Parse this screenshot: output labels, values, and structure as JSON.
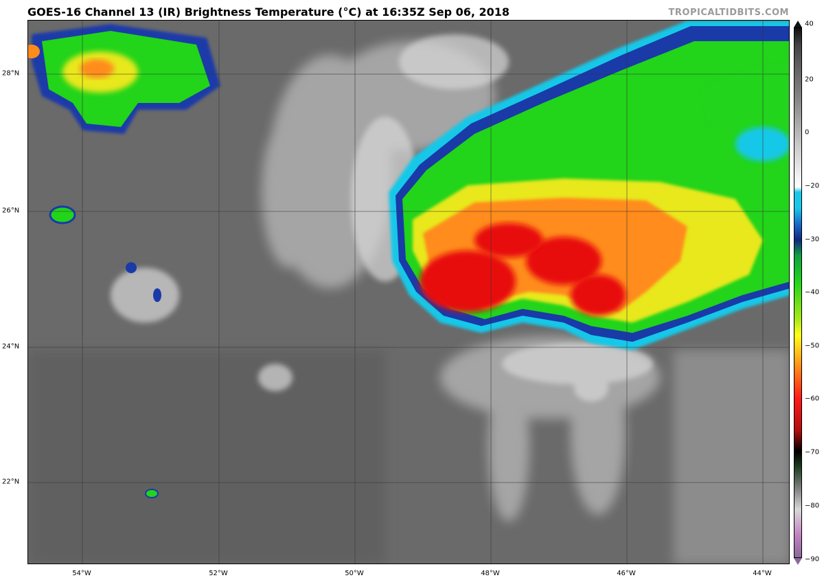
{
  "header": {
    "title": "GOES-16 Channel 13 (IR) Brightness Temperature (°C) at 16:35Z Sep 06, 2018",
    "credit": "TROPICALTIDBITS.COM"
  },
  "map": {
    "lat_labels": [
      "28°N",
      "26°N",
      "24°N",
      "22°N"
    ],
    "lon_labels": [
      "54°W",
      "52°W",
      "50°W",
      "48°W",
      "46°W",
      "44°W"
    ]
  },
  "colorbar": {
    "ticks": [
      "40",
      "20",
      "0",
      "−20",
      "−30",
      "−40",
      "−50",
      "−60",
      "−70",
      "−80",
      "−90"
    ],
    "range": [
      -90,
      40
    ]
  },
  "colors": {
    "background_cloud_free": "#6c6c6c",
    "cold_green": "#22d41a",
    "yellow": "#e8e81a",
    "orange": "#ff8c1a",
    "red": "#e81010",
    "blue": "#1a3aa8",
    "cyan": "#19c8e8"
  }
}
